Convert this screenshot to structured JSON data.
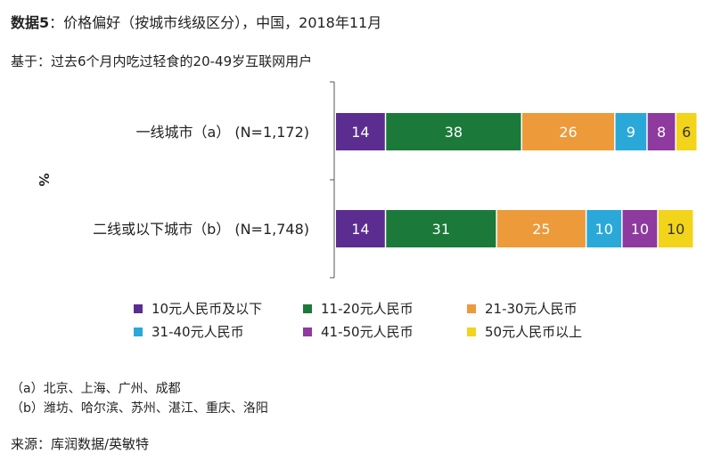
{
  "header": {
    "title_bold": "数据5",
    "title_rest": "：价格偏好（按城市线级区分），中国，2018年11月",
    "subtitle": "基于：过去6个月内吃过轻食的20-49岁互联网用户"
  },
  "chart_data": {
    "type": "bar",
    "orientation": "horizontal",
    "stacked": true,
    "ylabel": "%",
    "categories": [
      "一线城市（a）  (N=1,172)",
      "二线或以下城市（b）  (N=1,748)"
    ],
    "series": [
      {
        "name": "10元人民币及以下",
        "color": "#5c2d91",
        "values": [
          14,
          14
        ]
      },
      {
        "name": "11-20元人民币",
        "color": "#1b7a3a",
        "values": [
          38,
          31
        ]
      },
      {
        "name": "21-30元人民币",
        "color": "#ec9a3a",
        "values": [
          26,
          25
        ]
      },
      {
        "name": "31-40元人民币",
        "color": "#2aa9d9",
        "values": [
          9,
          10
        ]
      },
      {
        "name": "41-50元人民币",
        "color": "#8e3a9e",
        "values": [
          8,
          10
        ]
      },
      {
        "name": "50元人民币以上",
        "color": "#f2d41b",
        "values": [
          6,
          10
        ]
      }
    ],
    "xlim": [
      0,
      101
    ]
  },
  "notes": {
    "a": "（a）北京、上海、广州、成都",
    "b": "（b）潍坊、哈尔滨、苏州、湛江、重庆、洛阳"
  },
  "source": "来源：库润数据/英敏特"
}
